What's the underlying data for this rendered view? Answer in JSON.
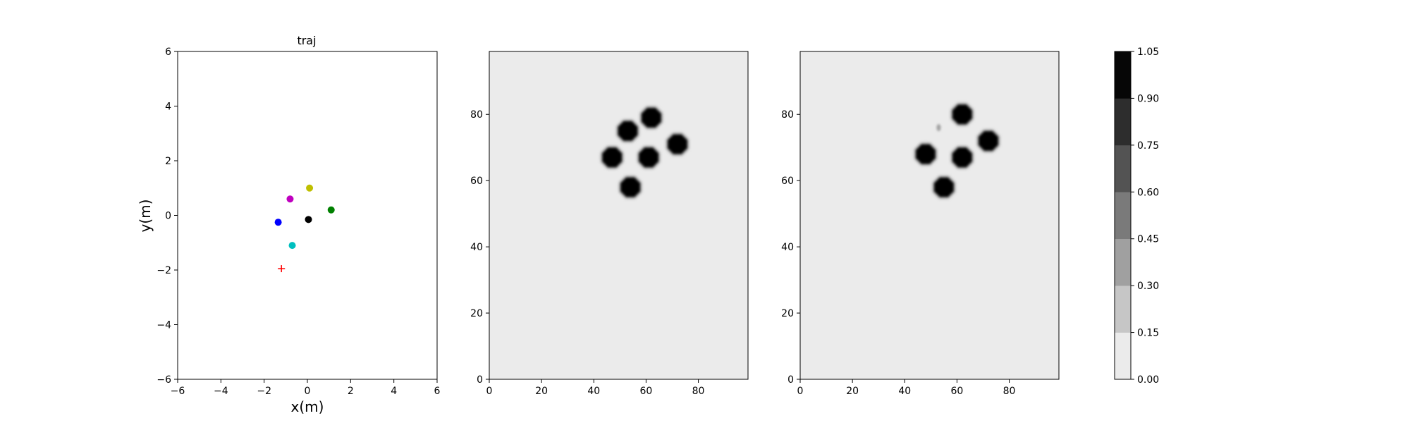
{
  "chart_data": [
    {
      "type": "scatter",
      "title": "traj",
      "xlabel": "x(m)",
      "ylabel": "y(m)",
      "xlim": [
        -6,
        6
      ],
      "ylim": [
        -6,
        6
      ],
      "xticks": [
        -6,
        -4,
        -2,
        0,
        2,
        4,
        6
      ],
      "yticks": [
        -6,
        -4,
        -2,
        0,
        2,
        4,
        6
      ],
      "points": [
        {
          "x": 0.1,
          "y": 1.0,
          "color": "#bfbf00",
          "marker": "circle"
        },
        {
          "x": -0.8,
          "y": 0.6,
          "color": "#bf00bf",
          "marker": "circle"
        },
        {
          "x": 1.1,
          "y": 0.2,
          "color": "#008000",
          "marker": "circle"
        },
        {
          "x": -1.35,
          "y": -0.25,
          "color": "#0000ff",
          "marker": "circle"
        },
        {
          "x": 0.05,
          "y": -0.15,
          "color": "#000000",
          "marker": "circle"
        },
        {
          "x": -0.7,
          "y": -1.1,
          "color": "#00bfbf",
          "marker": "circle"
        },
        {
          "x": -1.2,
          "y": -1.95,
          "color": "#ff0000",
          "marker": "plus"
        }
      ]
    },
    {
      "type": "heatmap",
      "xlim": [
        0,
        99
      ],
      "ylim": [
        0,
        99
      ],
      "xticks": [
        0,
        20,
        40,
        60,
        80
      ],
      "yticks": [
        0,
        20,
        40,
        60,
        80
      ],
      "background_value": 0.1,
      "blobs": [
        {
          "x": 62,
          "y": 79,
          "value": 1.0
        },
        {
          "x": 53,
          "y": 75,
          "value": 1.0
        },
        {
          "x": 72,
          "y": 71,
          "value": 1.0
        },
        {
          "x": 47,
          "y": 67,
          "value": 1.0
        },
        {
          "x": 61,
          "y": 67,
          "value": 1.0
        },
        {
          "x": 54,
          "y": 58,
          "value": 1.0
        }
      ]
    },
    {
      "type": "heatmap",
      "xlim": [
        0,
        99
      ],
      "ylim": [
        0,
        99
      ],
      "xticks": [
        0,
        20,
        40,
        60,
        80
      ],
      "yticks": [
        0,
        20,
        40,
        60,
        80
      ],
      "background_value": 0.1,
      "blobs": [
        {
          "x": 62,
          "y": 80,
          "value": 1.0
        },
        {
          "x": 72,
          "y": 72,
          "value": 1.0
        },
        {
          "x": 48,
          "y": 68,
          "value": 1.0
        },
        {
          "x": 62,
          "y": 67,
          "value": 1.0
        },
        {
          "x": 55,
          "y": 58,
          "value": 1.0
        },
        {
          "x": 53,
          "y": 76,
          "value": 0.3
        }
      ]
    }
  ],
  "colorbar": {
    "levels": [
      "0.00",
      "0.15",
      "0.30",
      "0.45",
      "0.60",
      "0.75",
      "0.90",
      "1.05"
    ],
    "colors": [
      "#ebebeb",
      "#c6c6c6",
      "#a0a0a0",
      "#7a7a7a",
      "#535353",
      "#2d2d2d",
      "#060606"
    ]
  }
}
